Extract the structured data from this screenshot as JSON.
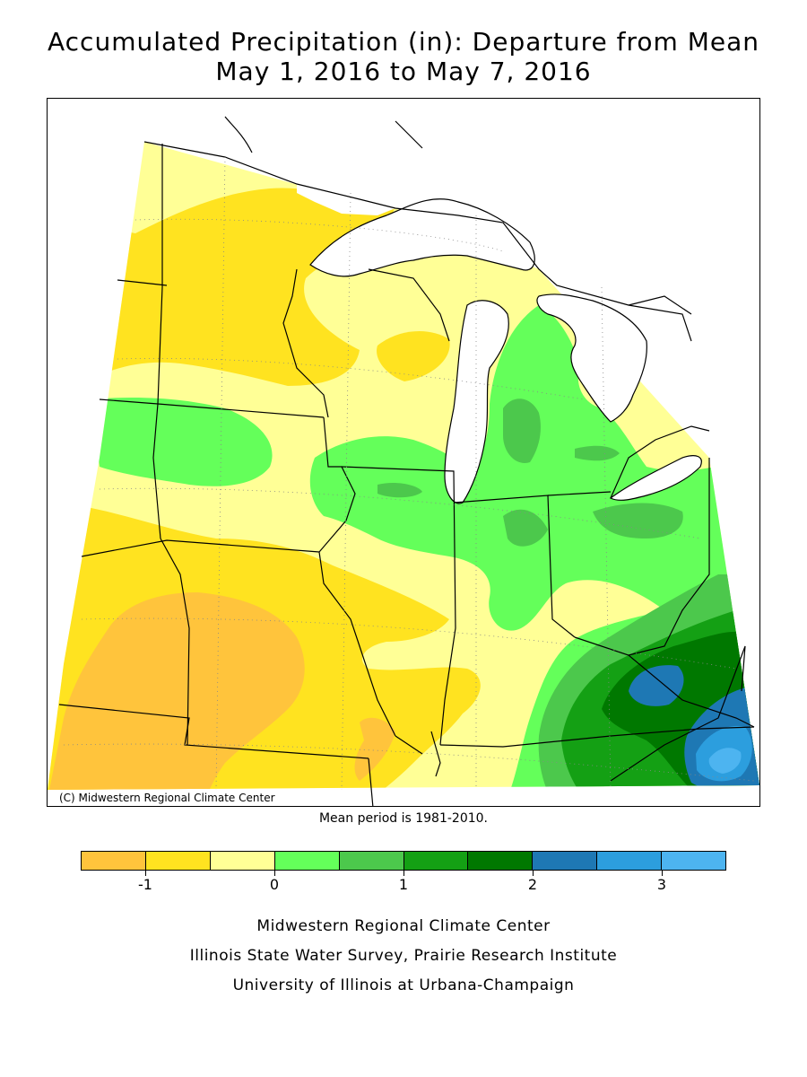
{
  "title_line1": "Accumulated Precipitation (in): Departure from Mean",
  "title_line2": "May 1, 2016 to May 7, 2016",
  "copyright": "(C) Midwestern Regional Climate Center",
  "mean_period": "Mean period is 1981-2010.",
  "legend": {
    "colors": [
      "#ffc43c",
      "#ffe320",
      "#ffff96",
      "#64ff5a",
      "#4cc84c",
      "#14a014",
      "#007800",
      "#1e78b4",
      "#2c9ede",
      "#4db4f0"
    ],
    "breaks": [
      -1.5,
      -1,
      -0.5,
      0,
      0.5,
      1,
      1.5,
      2,
      2.5,
      3,
      3.5
    ],
    "tick_values": [
      -1,
      0,
      1,
      2,
      3
    ],
    "tick_labels": [
      "-1",
      "0",
      "1",
      "2",
      "3"
    ]
  },
  "credits": [
    "Midwestern Regional Climate Center",
    "Illinois State Water Survey, Prairie Research Institute",
    "University of Illinois at Urbana-Champaign"
  ]
}
